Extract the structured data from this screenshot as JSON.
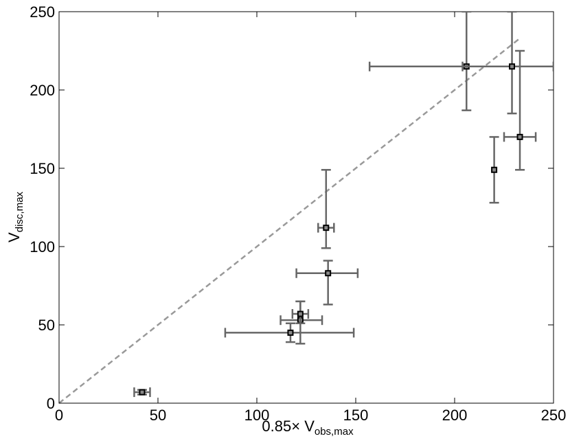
{
  "chart_data": {
    "type": "scatter",
    "title": "",
    "xlabel": {
      "prefix": "0.85× V",
      "subscript": "obs,max"
    },
    "ylabel": {
      "main": "V",
      "subscript": "disc,max"
    },
    "xlim": [
      0,
      250
    ],
    "ylim": [
      0,
      250
    ],
    "xticks": [
      0,
      50,
      100,
      150,
      200,
      250
    ],
    "yticks": [
      0,
      50,
      100,
      150,
      200,
      250
    ],
    "grid": false,
    "legend": "none",
    "colors": {
      "errorbar": "#666666",
      "marker": "#000000",
      "reference_line": "#999999"
    },
    "reference_line": {
      "style": "dashed",
      "x": [
        0,
        233
      ],
      "y": [
        0,
        233
      ]
    },
    "points": [
      {
        "x": 42,
        "y": 7,
        "xerr": [
          4,
          4
        ],
        "yerr": [
          1.5,
          1.5
        ]
      },
      {
        "x": 117,
        "y": 45,
        "xerr": [
          33,
          32
        ],
        "yerr": [
          6,
          6
        ]
      },
      {
        "x": 122,
        "y": 53,
        "xerr": [
          10,
          11
        ],
        "yerr": [
          15,
          12
        ]
      },
      {
        "x": 122,
        "y": 57,
        "xerr": [
          4,
          4
        ],
        "yerr": [
          6,
          8
        ]
      },
      {
        "x": 136,
        "y": 83,
        "xerr": [
          16,
          15
        ],
        "yerr": [
          20,
          8
        ]
      },
      {
        "x": 135,
        "y": 112,
        "xerr": [
          4,
          4
        ],
        "yerr": [
          13,
          37
        ]
      },
      {
        "x": 206,
        "y": 215,
        "xerr": [
          49,
          44
        ],
        "yerr": [
          28,
          35
        ]
      },
      {
        "x": 229,
        "y": 215,
        "xerr": [
          25,
          21
        ],
        "yerr": [
          30,
          35
        ]
      },
      {
        "x": 220,
        "y": 149,
        "xerr": [
          0,
          0
        ],
        "yerr": [
          21,
          21
        ]
      },
      {
        "x": 233,
        "y": 170,
        "xerr": [
          8,
          8
        ],
        "yerr": [
          21,
          55
        ]
      }
    ]
  }
}
